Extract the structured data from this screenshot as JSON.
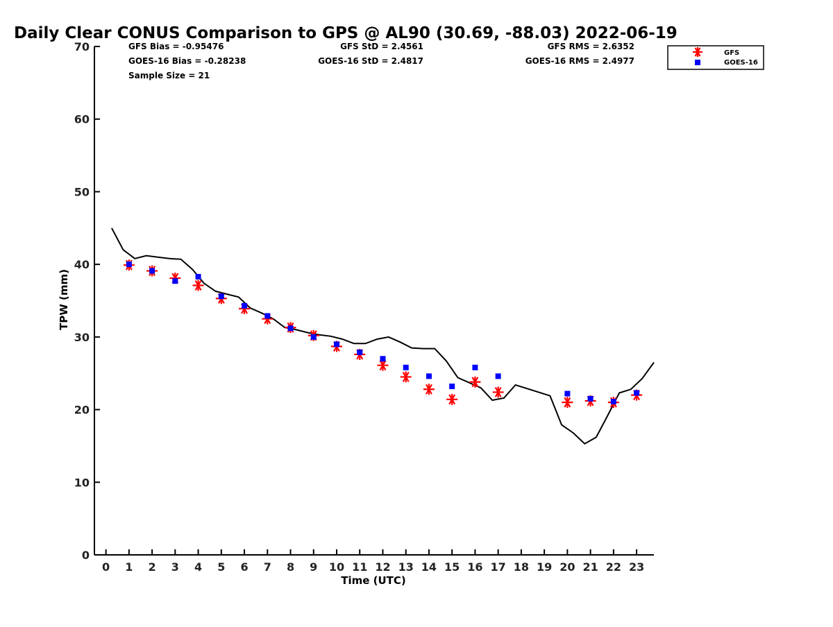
{
  "chart_data": {
    "type": "scatter",
    "title": "Daily Clear CONUS Comparison to GPS @ AL90 (30.69, -88.03) 2022-06-19",
    "xlabel": "Time (UTC)",
    "ylabel": "TPW (mm)",
    "xlim": [
      -0.5,
      23.75
    ],
    "ylim": [
      0,
      70
    ],
    "x_ticks": [
      "0",
      "1",
      "2",
      "3",
      "4",
      "5",
      "6",
      "7",
      "8",
      "9",
      "10",
      "11",
      "12",
      "13",
      "14",
      "15",
      "16",
      "17",
      "18",
      "19",
      "20",
      "21",
      "22",
      "23"
    ],
    "y_ticks": [
      "0",
      "10",
      "20",
      "30",
      "40",
      "50",
      "60",
      "70"
    ],
    "grid": false,
    "legend_position": "top-right",
    "stats": [
      "GFS Bias = -0.95476",
      "GFS StD = 2.4561",
      "GFS RMS = 2.6352",
      "GOES-16 Bias = -0.28238",
      "GOES-16 StD = 2.4817",
      "GOES-16 RMS = 2.4977",
      "Sample Size = 21"
    ],
    "series": [
      {
        "name": "GFS",
        "marker": "asterisk",
        "color": "#ff0000",
        "points": [
          [
            1,
            39.9
          ],
          [
            2,
            39.1
          ],
          [
            3,
            38.1
          ],
          [
            4,
            37.1
          ],
          [
            5,
            35.3
          ],
          [
            6,
            33.9
          ],
          [
            7,
            32.5
          ],
          [
            8,
            31.3
          ],
          [
            9,
            30.2
          ],
          [
            10,
            28.7
          ],
          [
            11,
            27.6
          ],
          [
            12,
            26.1
          ],
          [
            13,
            24.5
          ],
          [
            14,
            22.8
          ],
          [
            15,
            21.4
          ],
          [
            16,
            23.8
          ],
          [
            17,
            22.4
          ],
          [
            20,
            21.0
          ],
          [
            21,
            21.2
          ],
          [
            22,
            21.0
          ],
          [
            23,
            22.0
          ]
        ]
      },
      {
        "name": "GOES-16",
        "marker": "square",
        "color": "#0000ff",
        "points": [
          [
            1,
            40.0
          ],
          [
            2,
            39.1
          ],
          [
            3,
            37.7
          ],
          [
            4,
            38.3
          ],
          [
            5,
            35.6
          ],
          [
            6,
            34.3
          ],
          [
            7,
            32.9
          ],
          [
            8,
            31.2
          ],
          [
            9,
            30.0
          ],
          [
            10,
            29.0
          ],
          [
            11,
            27.9
          ],
          [
            12,
            27.0
          ],
          [
            13,
            25.8
          ],
          [
            14,
            24.6
          ],
          [
            15,
            23.2
          ],
          [
            16,
            25.8
          ],
          [
            17,
            24.6
          ],
          [
            20,
            22.2
          ],
          [
            21,
            21.5
          ],
          [
            22,
            21.1
          ],
          [
            23,
            22.3
          ]
        ]
      },
      {
        "name": "GPS",
        "marker": "line",
        "color": "#000000",
        "points": [
          [
            0.25,
            45.0
          ],
          [
            0.75,
            42.0
          ],
          [
            1.25,
            40.8
          ],
          [
            1.75,
            41.2
          ],
          [
            2.25,
            41.0
          ],
          [
            2.75,
            40.8
          ],
          [
            3.25,
            40.7
          ],
          [
            3.75,
            39.3
          ],
          [
            4.25,
            37.4
          ],
          [
            4.75,
            36.3
          ],
          [
            5.25,
            35.9
          ],
          [
            5.75,
            35.5
          ],
          [
            6.25,
            34.0
          ],
          [
            6.75,
            33.3
          ],
          [
            7.25,
            32.5
          ],
          [
            7.75,
            31.3
          ],
          [
            8.25,
            31.0
          ],
          [
            8.75,
            30.6
          ],
          [
            9.25,
            30.3
          ],
          [
            9.75,
            30.1
          ],
          [
            10.25,
            29.7
          ],
          [
            10.75,
            29.1
          ],
          [
            11.25,
            29.1
          ],
          [
            11.75,
            29.7
          ],
          [
            12.25,
            30.0
          ],
          [
            12.75,
            29.3
          ],
          [
            13.25,
            28.5
          ],
          [
            13.75,
            28.4
          ],
          [
            14.25,
            28.4
          ],
          [
            14.75,
            26.7
          ],
          [
            15.25,
            24.4
          ],
          [
            15.75,
            23.7
          ],
          [
            16.25,
            23.0
          ],
          [
            16.75,
            21.3
          ],
          [
            17.25,
            21.6
          ],
          [
            17.75,
            23.4
          ],
          [
            18.25,
            22.9
          ],
          [
            18.75,
            22.4
          ],
          [
            19.25,
            21.9
          ],
          [
            19.75,
            17.9
          ],
          [
            20.25,
            16.8
          ],
          [
            20.75,
            15.3
          ],
          [
            21.25,
            16.2
          ],
          [
            21.75,
            19.2
          ],
          [
            22.25,
            22.3
          ],
          [
            22.75,
            22.8
          ],
          [
            23.25,
            24.3
          ],
          [
            23.75,
            26.5
          ]
        ]
      }
    ]
  }
}
